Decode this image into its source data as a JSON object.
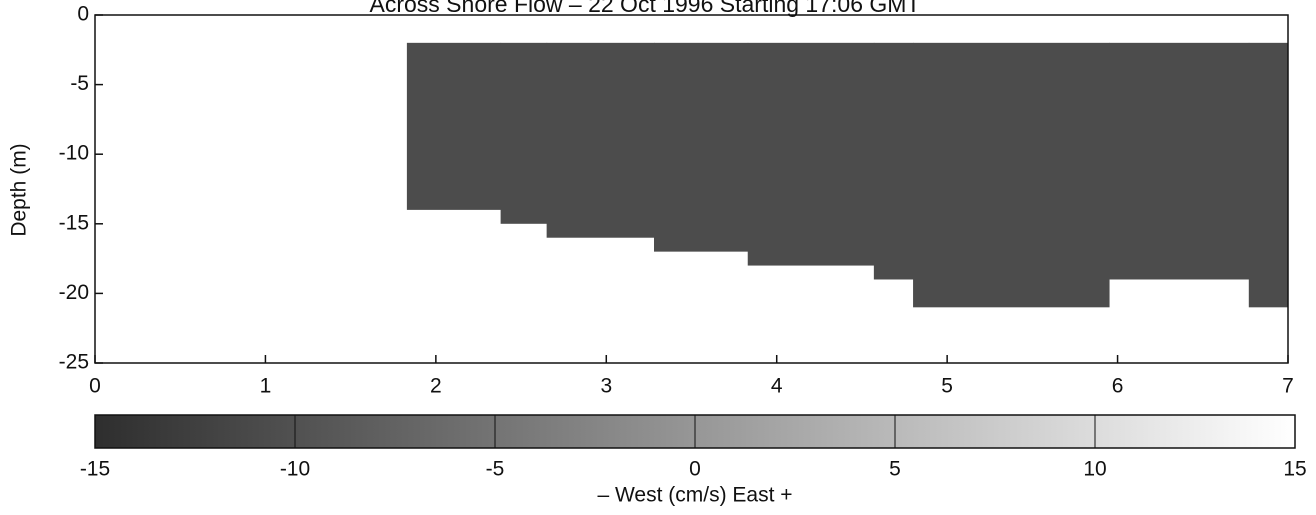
{
  "chart_data": {
    "type": "section",
    "title": "Across Shore Flow – 22 Oct 1996 Starting  17:06 GMT",
    "ylabel": "Depth  (m)",
    "x_edges": [
      1.83,
      2.38,
      2.65,
      3.28,
      3.83,
      4.57,
      4.8,
      5.95,
      6.77,
      7
    ],
    "top": -2,
    "bottom": [
      -14,
      -15,
      -16,
      -17,
      -18,
      -19,
      -21,
      -19,
      -21
    ],
    "color": "#4c4c4c",
    "xlim": [
      0,
      7
    ],
    "xticks": [
      0,
      1,
      2,
      3,
      4,
      5,
      6,
      7
    ],
    "ylim": [
      -25,
      0
    ],
    "yticks": [
      -25,
      -20,
      -15,
      -10,
      -5,
      0
    ],
    "colorbar": {
      "label": "– West   (cm/s)   East +",
      "clim": [
        -15,
        15
      ],
      "ticks": [
        -15,
        -10,
        -5,
        0,
        5,
        10,
        15
      ],
      "colors": [
        "#2e2e2e",
        "#ffffff"
      ]
    }
  }
}
